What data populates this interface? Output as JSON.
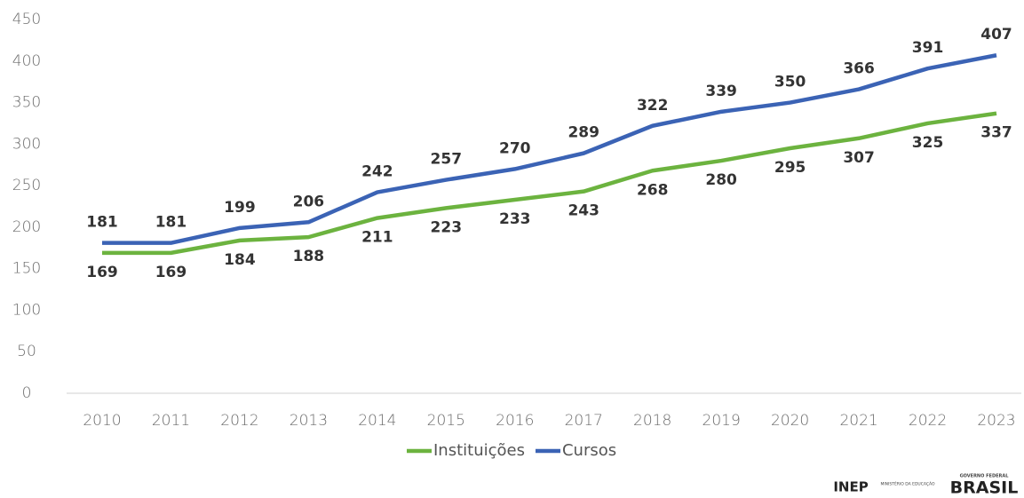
{
  "chart_data": {
    "type": "line",
    "categories": [
      "2010",
      "2011",
      "2012",
      "2013",
      "2014",
      "2015",
      "2016",
      "2017",
      "2018",
      "2019",
      "2020",
      "2021",
      "2022",
      "2023"
    ],
    "series": [
      {
        "name": "Instituições",
        "color": "#6cb33f",
        "values": [
          169,
          169,
          184,
          188,
          211,
          223,
          233,
          243,
          268,
          280,
          295,
          307,
          325,
          337
        ],
        "label_side": "below"
      },
      {
        "name": "Cursos",
        "color": "#3b63b5",
        "values": [
          181,
          181,
          199,
          206,
          242,
          257,
          270,
          289,
          322,
          339,
          350,
          366,
          391,
          407
        ],
        "label_side": "above"
      }
    ],
    "ylim": [
      0,
      450
    ],
    "yticks": [
      0,
      50,
      100,
      150,
      200,
      250,
      300,
      350,
      400,
      450
    ],
    "grid": false,
    "legend": "bottom"
  },
  "footer": {
    "logos": [
      "INEP",
      "MINISTÉRIO DA EDUCAÇÃO",
      "GOVERNO FEDERAL",
      "BRASIL"
    ]
  }
}
